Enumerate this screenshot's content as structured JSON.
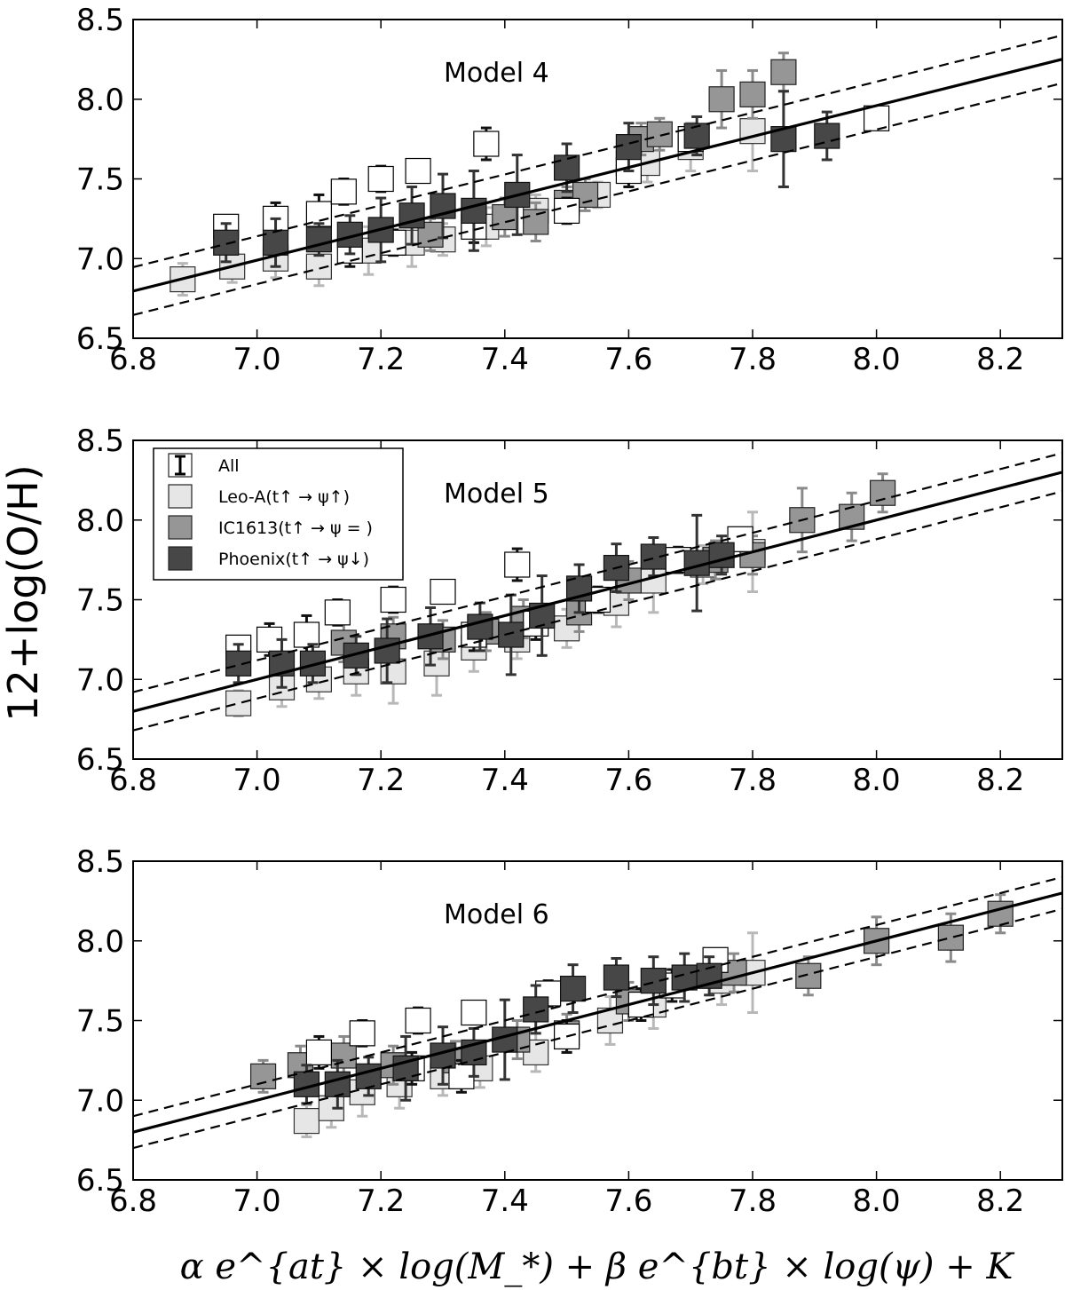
{
  "chart_data": {
    "figure": {
      "ylabel": "12+log(O/H)",
      "xlabel": "α e^{at} × log(M_*) + β e^{bt} × log(ψ) + K",
      "xlim": [
        6.8,
        8.3
      ],
      "ylim": [
        6.5,
        8.5
      ],
      "xticks": [
        "6.8",
        "7.0",
        "7.2",
        "7.4",
        "7.6",
        "7.8",
        "8.0",
        "8.2"
      ],
      "yticks": [
        "6.5",
        "7.0",
        "7.5",
        "8.0",
        "8.5"
      ],
      "colors": {
        "All": "#ffffff",
        "Leo-A": "#e6e6e6",
        "IC1613": "#969696",
        "Phoenix": "#474747"
      }
    },
    "legend": {
      "position": "upper-left of Model 5 panel",
      "entries": [
        {
          "group": "All",
          "label": "All"
        },
        {
          "group": "Leo-A",
          "label": "Leo-A(t↑ → ψ↑)"
        },
        {
          "group": "IC1613",
          "label": "IC1613(t↑ → ψ = )"
        },
        {
          "group": "Phoenix",
          "label": "Phoenix(t↑ → ψ↓)"
        }
      ]
    },
    "panels": [
      {
        "title": "Model 4",
        "type": "scatter",
        "fit": {
          "slope": 0.97,
          "intercept": 0.2,
          "band": 0.15
        },
        "series": [
          {
            "name": "All",
            "points": [
              [
                6.95,
                7.2,
                0.05
              ],
              [
                7.03,
                7.25,
                0.1
              ],
              [
                7.1,
                7.28,
                0.12
              ],
              [
                7.14,
                7.42,
                0.08
              ],
              [
                7.2,
                7.5,
                0.08
              ],
              [
                7.26,
                7.55,
                0.03
              ],
              [
                7.37,
                7.72,
                0.1
              ],
              [
                8.0,
                7.88,
                0.05
              ],
              [
                7.15,
                7.05,
                0.1
              ],
              [
                7.22,
                7.1,
                0.08
              ],
              [
                7.35,
                7.2,
                0.1
              ],
              [
                7.5,
                7.3,
                0.08
              ],
              [
                7.6,
                7.55,
                0.1
              ],
              [
                7.7,
                7.75,
                0.08
              ]
            ]
          },
          {
            "name": "Leo-A",
            "points": [
              [
                6.88,
                6.87,
                0.1
              ],
              [
                6.96,
                6.95,
                0.1
              ],
              [
                7.03,
                7.0,
                0.12
              ],
              [
                7.1,
                6.95,
                0.12
              ],
              [
                7.18,
                7.05,
                0.15
              ],
              [
                7.25,
                7.1,
                0.15
              ],
              [
                7.3,
                7.12,
                0.1
              ],
              [
                7.37,
                7.2,
                0.12
              ],
              [
                7.45,
                7.3,
                0.1
              ],
              [
                7.55,
                7.4,
                0.08
              ],
              [
                7.63,
                7.6,
                0.12
              ],
              [
                7.7,
                7.7,
                0.15
              ],
              [
                7.8,
                7.8,
                0.25
              ]
            ]
          },
          {
            "name": "IC1613",
            "points": [
              [
                7.28,
                7.15,
                0.1
              ],
              [
                7.35,
                7.22,
                0.12
              ],
              [
                7.4,
                7.26,
                0.12
              ],
              [
                7.45,
                7.23,
                0.12
              ],
              [
                7.5,
                7.35,
                0.1
              ],
              [
                7.53,
                7.4,
                0.1
              ],
              [
                7.6,
                7.6,
                0.15
              ],
              [
                7.62,
                7.75,
                0.1
              ],
              [
                7.65,
                7.78,
                0.1
              ],
              [
                7.75,
                8.0,
                0.18
              ],
              [
                7.8,
                8.03,
                0.15
              ],
              [
                7.85,
                8.17,
                0.12
              ]
            ]
          },
          {
            "name": "Phoenix",
            "points": [
              [
                6.95,
                7.1,
                0.12
              ],
              [
                7.03,
                7.1,
                0.15
              ],
              [
                7.1,
                7.12,
                0.1
              ],
              [
                7.15,
                7.15,
                0.12
              ],
              [
                7.2,
                7.18,
                0.2
              ],
              [
                7.25,
                7.27,
                0.18
              ],
              [
                7.3,
                7.33,
                0.2
              ],
              [
                7.35,
                7.3,
                0.25
              ],
              [
                7.42,
                7.4,
                0.25
              ],
              [
                7.5,
                7.57,
                0.15
              ],
              [
                7.6,
                7.7,
                0.15
              ],
              [
                7.71,
                7.77,
                0.12
              ],
              [
                7.85,
                7.75,
                0.3
              ],
              [
                7.92,
                7.77,
                0.15
              ]
            ]
          }
        ]
      },
      {
        "title": "Model 5",
        "type": "scatter",
        "fit": {
          "slope": 1.0,
          "intercept": 0.0,
          "band": 0.12
        },
        "series": [
          {
            "name": "All",
            "points": [
              [
                6.97,
                7.2,
                0.05
              ],
              [
                7.02,
                7.25,
                0.1
              ],
              [
                7.08,
                7.28,
                0.12
              ],
              [
                7.13,
                7.42,
                0.08
              ],
              [
                7.22,
                7.5,
                0.08
              ],
              [
                7.3,
                7.55,
                0.03
              ],
              [
                7.42,
                7.72,
                0.1
              ],
              [
                7.78,
                7.88,
                0.05
              ],
              [
                7.35,
                7.28,
                0.1
              ],
              [
                7.45,
                7.35,
                0.1
              ],
              [
                7.55,
                7.5,
                0.08
              ],
              [
                7.68,
                7.75,
                0.08
              ]
            ]
          },
          {
            "name": "Leo-A",
            "points": [
              [
                6.97,
                6.85,
                0.08
              ],
              [
                7.04,
                6.95,
                0.12
              ],
              [
                7.1,
                7.0,
                0.12
              ],
              [
                7.16,
                7.05,
                0.15
              ],
              [
                7.22,
                7.05,
                0.2
              ],
              [
                7.29,
                7.1,
                0.2
              ],
              [
                7.35,
                7.2,
                0.15
              ],
              [
                7.42,
                7.25,
                0.12
              ],
              [
                7.5,
                7.32,
                0.12
              ],
              [
                7.58,
                7.48,
                0.15
              ],
              [
                7.64,
                7.62,
                0.2
              ],
              [
                7.72,
                7.72,
                0.12
              ],
              [
                7.8,
                7.8,
                0.25
              ]
            ]
          },
          {
            "name": "IC1613",
            "points": [
              [
                7.14,
                7.23,
                0.12
              ],
              [
                7.22,
                7.27,
                0.12
              ],
              [
                7.3,
                7.25,
                0.12
              ],
              [
                7.37,
                7.3,
                0.12
              ],
              [
                7.43,
                7.38,
                0.12
              ],
              [
                7.52,
                7.42,
                0.12
              ],
              [
                7.6,
                7.62,
                0.12
              ],
              [
                7.74,
                7.75,
                0.12
              ],
              [
                7.8,
                7.78,
                0.12
              ],
              [
                7.88,
                8.0,
                0.2
              ],
              [
                7.96,
                8.02,
                0.15
              ],
              [
                8.01,
                8.17,
                0.12
              ]
            ]
          },
          {
            "name": "Phoenix",
            "points": [
              [
                6.97,
                7.1,
                0.12
              ],
              [
                7.04,
                7.1,
                0.15
              ],
              [
                7.09,
                7.1,
                0.12
              ],
              [
                7.16,
                7.15,
                0.12
              ],
              [
                7.21,
                7.18,
                0.2
              ],
              [
                7.28,
                7.27,
                0.18
              ],
              [
                7.36,
                7.33,
                0.15
              ],
              [
                7.41,
                7.28,
                0.25
              ],
              [
                7.46,
                7.4,
                0.25
              ],
              [
                7.52,
                7.57,
                0.15
              ],
              [
                7.58,
                7.7,
                0.15
              ],
              [
                7.64,
                7.77,
                0.12
              ],
              [
                7.71,
                7.73,
                0.3
              ],
              [
                7.75,
                7.78,
                0.12
              ]
            ]
          }
        ]
      },
      {
        "title": "Model 6",
        "type": "scatter",
        "fit": {
          "slope": 1.0,
          "intercept": 0.0,
          "band": 0.1
        },
        "series": [
          {
            "name": "All",
            "points": [
              [
                7.1,
                7.3,
                0.1
              ],
              [
                7.17,
                7.42,
                0.08
              ],
              [
                7.26,
                7.5,
                0.08
              ],
              [
                7.35,
                7.55,
                0.05
              ],
              [
                7.47,
                7.67,
                0.08
              ],
              [
                7.74,
                7.88,
                0.05
              ],
              [
                7.25,
                7.2,
                0.1
              ],
              [
                7.33,
                7.15,
                0.1
              ],
              [
                7.5,
                7.4,
                0.1
              ],
              [
                7.62,
                7.6,
                0.1
              ],
              [
                7.67,
                7.72,
                0.1
              ]
            ]
          },
          {
            "name": "Leo-A",
            "points": [
              [
                7.08,
                6.87,
                0.1
              ],
              [
                7.12,
                6.95,
                0.12
              ],
              [
                7.17,
                7.05,
                0.15
              ],
              [
                7.23,
                7.1,
                0.15
              ],
              [
                7.3,
                7.15,
                0.12
              ],
              [
                7.36,
                7.2,
                0.12
              ],
              [
                7.45,
                7.3,
                0.12
              ],
              [
                7.57,
                7.5,
                0.15
              ],
              [
                7.64,
                7.6,
                0.15
              ],
              [
                7.75,
                7.75,
                0.15
              ],
              [
                7.8,
                7.8,
                0.25
              ]
            ]
          },
          {
            "name": "IC1613",
            "points": [
              [
                7.01,
                7.15,
                0.1
              ],
              [
                7.07,
                7.22,
                0.12
              ],
              [
                7.14,
                7.28,
                0.12
              ],
              [
                7.22,
                7.22,
                0.12
              ],
              [
                7.32,
                7.25,
                0.12
              ],
              [
                7.42,
                7.38,
                0.12
              ],
              [
                7.5,
                7.42,
                0.12
              ],
              [
                7.6,
                7.62,
                0.12
              ],
              [
                7.77,
                7.8,
                0.12
              ],
              [
                7.89,
                7.78,
                0.12
              ],
              [
                8.0,
                8.0,
                0.15
              ],
              [
                8.12,
                8.02,
                0.15
              ],
              [
                8.2,
                8.17,
                0.12
              ]
            ]
          },
          {
            "name": "Phoenix",
            "points": [
              [
                7.08,
                7.1,
                0.12
              ],
              [
                7.13,
                7.1,
                0.15
              ],
              [
                7.18,
                7.15,
                0.12
              ],
              [
                7.24,
                7.2,
                0.2
              ],
              [
                7.3,
                7.28,
                0.18
              ],
              [
                7.35,
                7.3,
                0.15
              ],
              [
                7.4,
                7.38,
                0.25
              ],
              [
                7.45,
                7.57,
                0.15
              ],
              [
                7.51,
                7.7,
                0.15
              ],
              [
                7.58,
                7.77,
                0.12
              ],
              [
                7.64,
                7.75,
                0.15
              ],
              [
                7.69,
                7.77,
                0.15
              ],
              [
                7.73,
                7.78,
                0.12
              ]
            ]
          }
        ]
      }
    ]
  }
}
